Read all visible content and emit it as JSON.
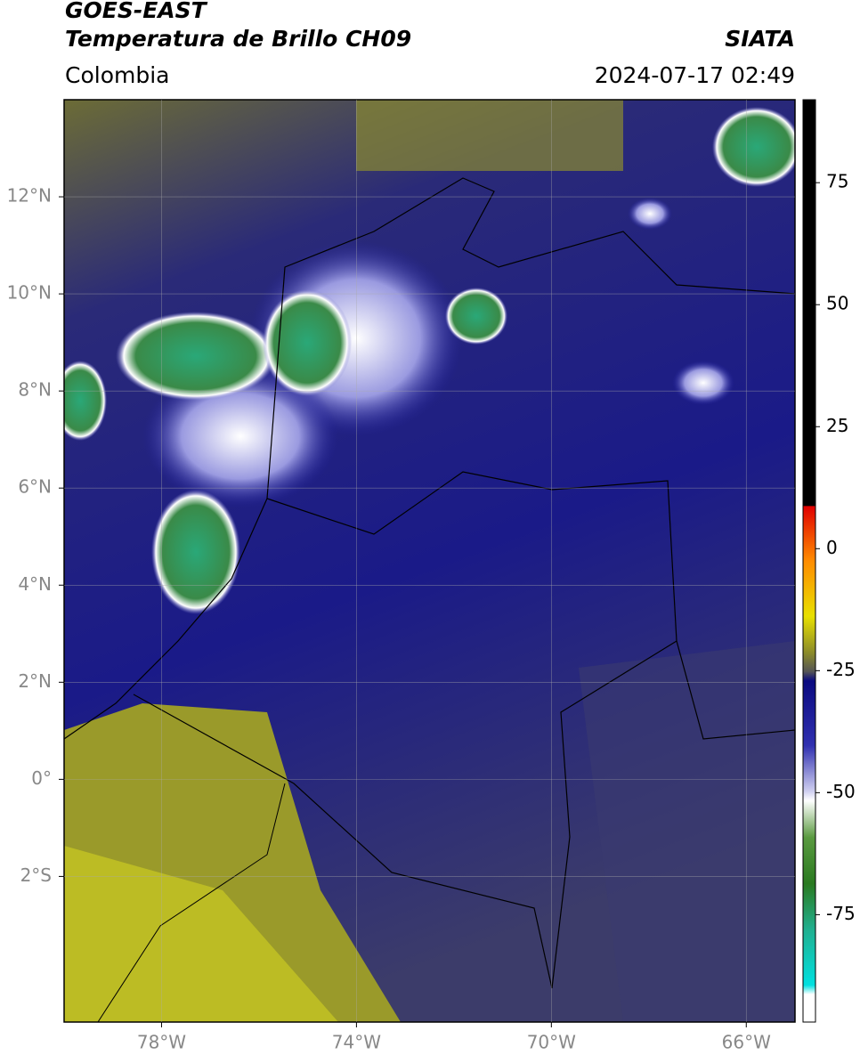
{
  "header": {
    "title": "GOES-EAST",
    "subtitle": "Temperatura de Brillo CH09",
    "region": "Colombia",
    "source": "SIATA",
    "datetime": "2024-07-17 02:49"
  },
  "map": {
    "xlim": [
      -80,
      -65
    ],
    "ylim": [
      -5,
      14
    ],
    "xticks": [
      {
        "value": -78,
        "label": "78°W"
      },
      {
        "value": -74,
        "label": "74°W"
      },
      {
        "value": -70,
        "label": "70°W"
      },
      {
        "value": -66,
        "label": "66°W"
      }
    ],
    "yticks": [
      {
        "value": 12,
        "label": "12°N"
      },
      {
        "value": 10,
        "label": "10°N"
      },
      {
        "value": 8,
        "label": "8°N"
      },
      {
        "value": 6,
        "label": "6°N"
      },
      {
        "value": 4,
        "label": "4°N"
      },
      {
        "value": 2,
        "label": "2°N"
      },
      {
        "value": 0,
        "label": "0°"
      },
      {
        "value": -2,
        "label": "2°S"
      }
    ],
    "grid": true
  },
  "colorbar": {
    "ylim": [
      -97,
      92
    ],
    "yticks": [
      75,
      50,
      25,
      0,
      -25,
      -50,
      -75
    ]
  }
}
